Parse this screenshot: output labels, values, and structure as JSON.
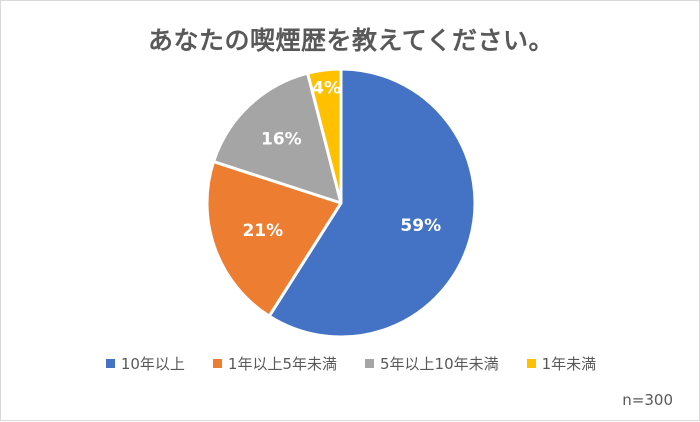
{
  "chart_data": {
    "type": "pie",
    "title": "あなたの喫煙歴を教えてください。",
    "categories": [
      "10年以上",
      "1年以上5年未満",
      "5年以上10年未満",
      "1年未満"
    ],
    "values": [
      59,
      21,
      16,
      4
    ],
    "labels": [
      "59%",
      "21%",
      "16%",
      "4%"
    ],
    "colors": [
      "#4472C4",
      "#ED7D31",
      "#A5A5A5",
      "#FFC000"
    ],
    "legend_position": "bottom",
    "note": "n=300"
  }
}
